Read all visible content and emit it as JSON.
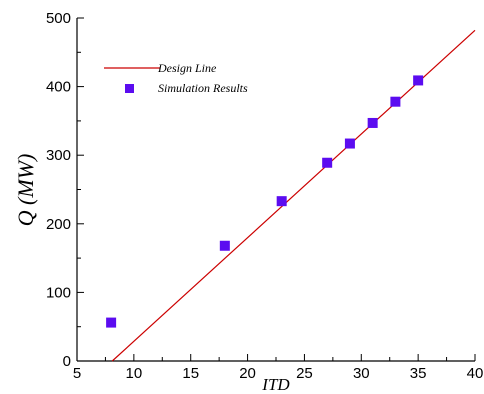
{
  "chart_data": {
    "type": "scatter",
    "xlabel": "ITD",
    "ylabel": "Q (MW)",
    "xlim": [
      5,
      40
    ],
    "ylim": [
      0,
      500
    ],
    "xticks": [
      5,
      10,
      15,
      20,
      25,
      30,
      35,
      40
    ],
    "yticks": [
      0,
      100,
      200,
      300,
      400,
      500
    ],
    "grid": false,
    "legend": "top-left",
    "series": [
      {
        "name": "Design Line",
        "kind": "line",
        "color": "#cc0000",
        "x": [
          8.1,
          40
        ],
        "y": [
          0,
          482
        ]
      },
      {
        "name": "Simulation Results",
        "kind": "scatter",
        "marker": "square",
        "color": "#5b0cf0",
        "x": [
          8,
          18,
          23,
          27,
          29,
          31,
          33,
          35
        ],
        "y": [
          56,
          168,
          233,
          289,
          317,
          347,
          378,
          409
        ]
      }
    ]
  }
}
